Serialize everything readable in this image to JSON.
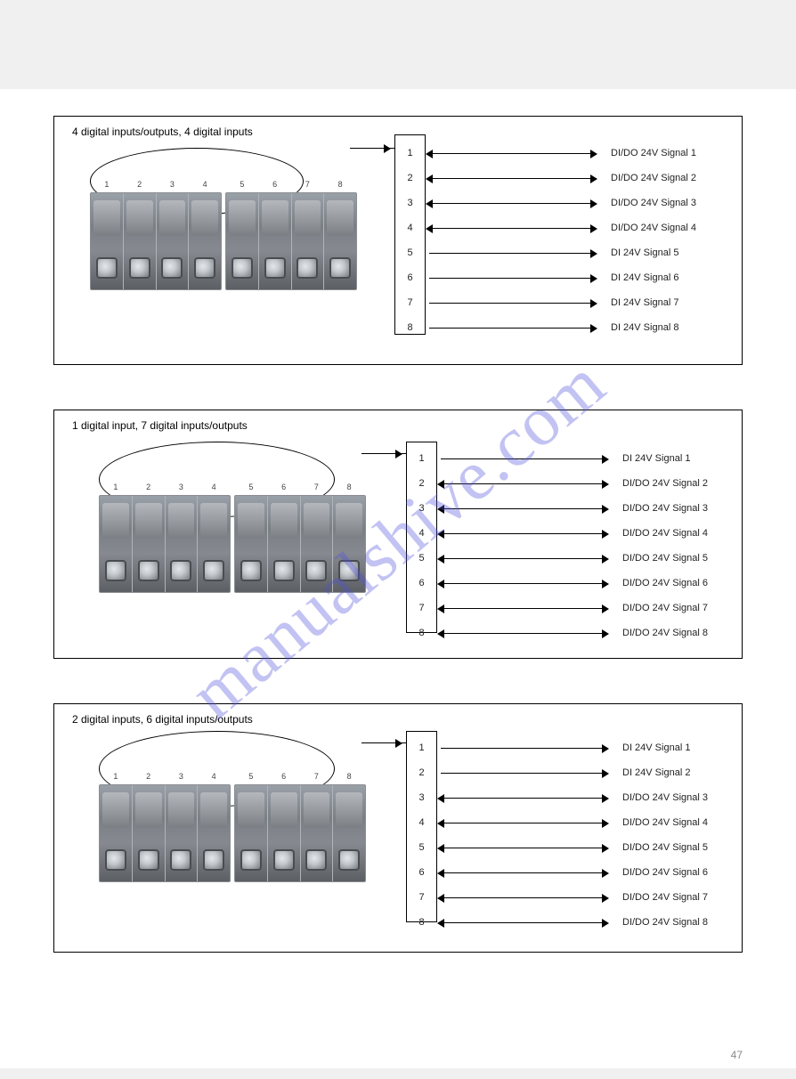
{
  "watermark": "manualshive.com",
  "page_number": "47",
  "terminal_slot_numbers": [
    [
      "1",
      "2",
      "3",
      "4"
    ],
    [
      "5",
      "6",
      "7",
      "8"
    ]
  ],
  "panels": [
    {
      "title": "4 digital inputs/outputs, 4 digital inputs",
      "legend": [
        {
          "num": "1",
          "arrow": "double",
          "label": "DI/DO 24V Signal 1"
        },
        {
          "num": "2",
          "arrow": "double",
          "label": "DI/DO 24V Signal 2"
        },
        {
          "num": "3",
          "arrow": "double",
          "label": "DI/DO 24V Signal 3"
        },
        {
          "num": "4",
          "arrow": "double",
          "label": "DI/DO 24V Signal 4"
        },
        {
          "num": "5",
          "arrow": "right",
          "label": "DI 24V Signal 5"
        },
        {
          "num": "6",
          "arrow": "right",
          "label": "DI 24V Signal 6"
        },
        {
          "num": "7",
          "arrow": "right",
          "label": "DI 24V Signal 7"
        },
        {
          "num": "8",
          "arrow": "right",
          "label": "DI 24V Signal 8"
        }
      ]
    },
    {
      "title": "1 digital input, 7 digital inputs/outputs",
      "legend": [
        {
          "num": "1",
          "arrow": "right",
          "label": "DI 24V Signal 1"
        },
        {
          "num": "2",
          "arrow": "double",
          "label": "DI/DO 24V Signal 2"
        },
        {
          "num": "3",
          "arrow": "double",
          "label": "DI/DO 24V Signal 3"
        },
        {
          "num": "4",
          "arrow": "double",
          "label": "DI/DO 24V Signal 4"
        },
        {
          "num": "5",
          "arrow": "double",
          "label": "DI/DO 24V Signal 5"
        },
        {
          "num": "6",
          "arrow": "double",
          "label": "DI/DO 24V Signal 6"
        },
        {
          "num": "7",
          "arrow": "double",
          "label": "DI/DO 24V Signal 7"
        },
        {
          "num": "8",
          "arrow": "double",
          "label": "DI/DO 24V Signal 8"
        }
      ]
    },
    {
      "title": "2 digital inputs, 6 digital inputs/outputs",
      "legend": [
        {
          "num": "1",
          "arrow": "right",
          "label": "DI 24V Signal 1"
        },
        {
          "num": "2",
          "arrow": "right",
          "label": "DI 24V Signal 2"
        },
        {
          "num": "3",
          "arrow": "double",
          "label": "DI/DO 24V Signal 3"
        },
        {
          "num": "4",
          "arrow": "double",
          "label": "DI/DO 24V Signal 4"
        },
        {
          "num": "5",
          "arrow": "double",
          "label": "DI/DO 24V Signal 5"
        },
        {
          "num": "6",
          "arrow": "double",
          "label": "DI/DO 24V Signal 6"
        },
        {
          "num": "7",
          "arrow": "double",
          "label": "DI/DO 24V Signal 7"
        },
        {
          "num": "8",
          "arrow": "double",
          "label": "DI/DO 24V Signal 8"
        }
      ]
    }
  ]
}
